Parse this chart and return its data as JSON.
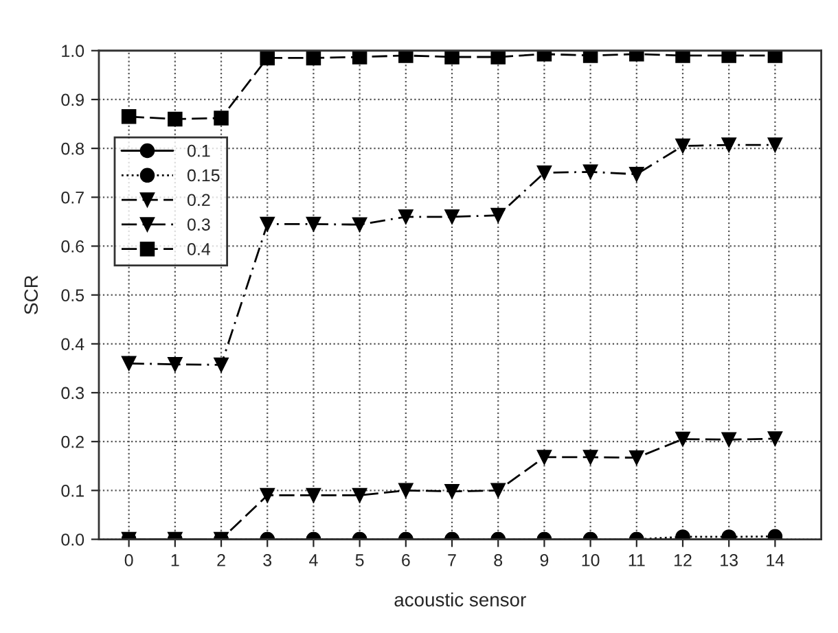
{
  "chart_data": {
    "type": "line",
    "xlabel": "acoustic sensor",
    "ylabel": "SCR",
    "x": [
      0,
      1,
      2,
      3,
      4,
      5,
      6,
      7,
      8,
      9,
      10,
      11,
      12,
      13,
      14
    ],
    "xlim": [
      -0.65,
      15
    ],
    "xticks": [
      0,
      1,
      2,
      3,
      4,
      5,
      6,
      7,
      8,
      9,
      10,
      11,
      12,
      13,
      14
    ],
    "ylim": [
      0,
      1
    ],
    "yticks": [
      {
        "value": 0,
        "label": "0.0"
      },
      0.1,
      0.2,
      0.3,
      0.4,
      0.5,
      0.6,
      0.7,
      0.8,
      0.9,
      {
        "value": 1,
        "label": "1.0"
      }
    ],
    "grid": true,
    "legend": "top left",
    "series": [
      {
        "name": "0.1",
        "color": "#000000",
        "marker": "circle",
        "line_style": "solid",
        "values": [
          0,
          0,
          0,
          0,
          0,
          0,
          0,
          0,
          0,
          0,
          0,
          0,
          0,
          0,
          0
        ]
      },
      {
        "name": "0.15",
        "color": "#000000",
        "marker": "circle",
        "line_style": "dotted",
        "values": [
          0,
          0,
          0,
          0,
          0,
          0,
          0,
          0,
          0,
          0,
          0,
          0,
          0.005,
          0.005,
          0.006
        ]
      },
      {
        "name": "0.2",
        "color": "#000000",
        "marker": "triangle",
        "line_style": "dashed",
        "values": [
          0,
          0,
          0,
          0.09,
          0.09,
          0.09,
          0.1,
          0.098,
          0.1,
          0.168,
          0.168,
          0.167,
          0.205,
          0.204,
          0.206
        ]
      },
      {
        "name": "0.3",
        "color": "#000000",
        "marker": "triangle",
        "line_style": "dashdot",
        "values": [
          0.36,
          0.358,
          0.357,
          0.645,
          0.645,
          0.644,
          0.66,
          0.66,
          0.663,
          0.75,
          0.752,
          0.747,
          0.805,
          0.807,
          0.807
        ]
      },
      {
        "name": "0.4",
        "color": "#000000",
        "marker": "square",
        "line_style": "dashed",
        "values": [
          0.865,
          0.86,
          0.862,
          0.985,
          0.985,
          0.987,
          0.99,
          0.987,
          0.987,
          0.993,
          0.99,
          0.993,
          0.99,
          0.99,
          0.99
        ]
      }
    ]
  }
}
